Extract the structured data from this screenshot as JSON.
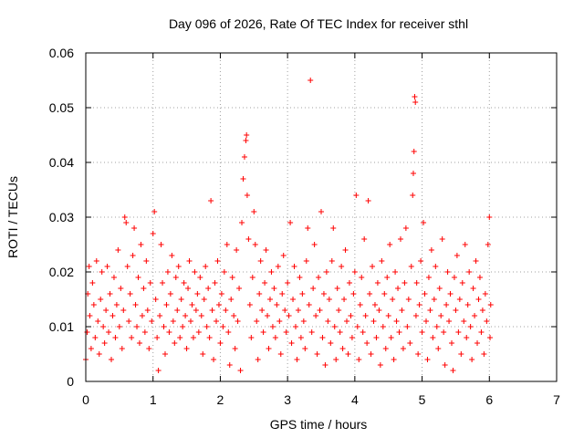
{
  "chart_data": {
    "type": "scatter",
    "title": "Day 096 of 2026, Rate Of TEC Index for receiver sthl",
    "xlabel": "GPS time / hours",
    "ylabel": "ROTI / TECUs",
    "xlim": [
      0,
      7
    ],
    "ylim": [
      0,
      0.06
    ],
    "grid": true,
    "marker": "+",
    "x_ticks": [
      0,
      1,
      2,
      3,
      4,
      5,
      6,
      7
    ],
    "x_tick_labels": [
      "0",
      "1",
      "2",
      "3",
      "4",
      "5",
      "6",
      "7"
    ],
    "y_ticks": [
      0,
      0.01,
      0.02,
      0.03,
      0.04,
      0.05,
      0.06
    ],
    "y_tick_labels": [
      "0",
      "0.01",
      "0.02",
      "0.03",
      "0.04",
      "0.05",
      "0.06"
    ],
    "series": [
      {
        "name": "ROTI",
        "color": "#ff0000",
        "points": [
          [
            0.0,
            0.004
          ],
          [
            0.02,
            0.009
          ],
          [
            0.03,
            0.016
          ],
          [
            0.05,
            0.021
          ],
          [
            0.06,
            0.012
          ],
          [
            0.08,
            0.006
          ],
          [
            0.1,
            0.018
          ],
          [
            0.12,
            0.014
          ],
          [
            0.14,
            0.008
          ],
          [
            0.16,
            0.022
          ],
          [
            0.18,
            0.011
          ],
          [
            0.2,
            0.005
          ],
          [
            0.22,
            0.015
          ],
          [
            0.24,
            0.02
          ],
          [
            0.26,
            0.01
          ],
          [
            0.28,
            0.007
          ],
          [
            0.3,
            0.013
          ],
          [
            0.32,
            0.021
          ],
          [
            0.34,
            0.009
          ],
          [
            0.36,
            0.016
          ],
          [
            0.38,
            0.004
          ],
          [
            0.4,
            0.012
          ],
          [
            0.42,
            0.019
          ],
          [
            0.44,
            0.008
          ],
          [
            0.46,
            0.014
          ],
          [
            0.48,
            0.024
          ],
          [
            0.5,
            0.01
          ],
          [
            0.52,
            0.017
          ],
          [
            0.54,
            0.006
          ],
          [
            0.56,
            0.013
          ],
          [
            0.58,
            0.03
          ],
          [
            0.6,
            0.029
          ],
          [
            0.62,
            0.021
          ],
          [
            0.64,
            0.011
          ],
          [
            0.66,
            0.016
          ],
          [
            0.68,
            0.008
          ],
          [
            0.7,
            0.023
          ],
          [
            0.72,
            0.028
          ],
          [
            0.74,
            0.014
          ],
          [
            0.76,
            0.01
          ],
          [
            0.78,
            0.019
          ],
          [
            0.8,
            0.007
          ],
          [
            0.82,
            0.025
          ],
          [
            0.84,
            0.012
          ],
          [
            0.86,
            0.017
          ],
          [
            0.88,
            0.009
          ],
          [
            0.9,
            0.022
          ],
          [
            0.92,
            0.013
          ],
          [
            0.94,
            0.006
          ],
          [
            0.96,
            0.018
          ],
          [
            0.98,
            0.011
          ],
          [
            1.0,
            0.027
          ],
          [
            1.02,
            0.031
          ],
          [
            1.04,
            0.015
          ],
          [
            1.06,
            0.008
          ],
          [
            1.08,
            0.002
          ],
          [
            1.1,
            0.012
          ],
          [
            1.12,
            0.025
          ],
          [
            1.14,
            0.018
          ],
          [
            1.16,
            0.01
          ],
          [
            1.18,
            0.005
          ],
          [
            1.2,
            0.014
          ],
          [
            1.22,
            0.02
          ],
          [
            1.24,
            0.009
          ],
          [
            1.26,
            0.016
          ],
          [
            1.28,
            0.023
          ],
          [
            1.3,
            0.011
          ],
          [
            1.32,
            0.007
          ],
          [
            1.34,
            0.019
          ],
          [
            1.36,
            0.013
          ],
          [
            1.38,
            0.021
          ],
          [
            1.4,
            0.008
          ],
          [
            1.42,
            0.015
          ],
          [
            1.44,
            0.01
          ],
          [
            1.46,
            0.018
          ],
          [
            1.48,
            0.012
          ],
          [
            1.5,
            0.006
          ],
          [
            1.52,
            0.017
          ],
          [
            1.54,
            0.022
          ],
          [
            1.56,
            0.011
          ],
          [
            1.58,
            0.014
          ],
          [
            1.6,
            0.008
          ],
          [
            1.62,
            0.02
          ],
          [
            1.64,
            0.013
          ],
          [
            1.66,
            0.016
          ],
          [
            1.68,
            0.009
          ],
          [
            1.7,
            0.019
          ],
          [
            1.72,
            0.012
          ],
          [
            1.74,
            0.005
          ],
          [
            1.76,
            0.015
          ],
          [
            1.78,
            0.021
          ],
          [
            1.8,
            0.01
          ],
          [
            1.82,
            0.017
          ],
          [
            1.84,
            0.008
          ],
          [
            1.86,
            0.033
          ],
          [
            1.88,
            0.013
          ],
          [
            1.9,
            0.004
          ],
          [
            1.92,
            0.018
          ],
          [
            1.94,
            0.011
          ],
          [
            1.96,
            0.022
          ],
          [
            1.98,
            0.014
          ],
          [
            2.0,
            0.007
          ],
          [
            2.02,
            0.016
          ],
          [
            2.04,
            0.01
          ],
          [
            2.06,
            0.02
          ],
          [
            2.08,
            0.013
          ],
          [
            2.1,
            0.025
          ],
          [
            2.12,
            0.009
          ],
          [
            2.14,
            0.003
          ],
          [
            2.16,
            0.015
          ],
          [
            2.18,
            0.019
          ],
          [
            2.2,
            0.012
          ],
          [
            2.22,
            0.006
          ],
          [
            2.24,
            0.024
          ],
          [
            2.26,
            0.011
          ],
          [
            2.28,
            0.017
          ],
          [
            2.3,
            0.002
          ],
          [
            2.32,
            0.029
          ],
          [
            2.34,
            0.037
          ],
          [
            2.36,
            0.041
          ],
          [
            2.38,
            0.044
          ],
          [
            2.39,
            0.045
          ],
          [
            2.4,
            0.034
          ],
          [
            2.42,
            0.026
          ],
          [
            2.44,
            0.014
          ],
          [
            2.46,
            0.008
          ],
          [
            2.48,
            0.019
          ],
          [
            2.5,
            0.031
          ],
          [
            2.52,
            0.025
          ],
          [
            2.54,
            0.011
          ],
          [
            2.56,
            0.004
          ],
          [
            2.58,
            0.016
          ],
          [
            2.6,
            0.022
          ],
          [
            2.62,
            0.013
          ],
          [
            2.64,
            0.009
          ],
          [
            2.66,
            0.018
          ],
          [
            2.68,
            0.024
          ],
          [
            2.7,
            0.012
          ],
          [
            2.72,
            0.006
          ],
          [
            2.74,
            0.015
          ],
          [
            2.76,
            0.02
          ],
          [
            2.78,
            0.01
          ],
          [
            2.8,
            0.017
          ],
          [
            2.82,
            0.008
          ],
          [
            2.84,
            0.014
          ],
          [
            2.86,
            0.021
          ],
          [
            2.88,
            0.011
          ],
          [
            2.9,
            0.005
          ],
          [
            2.92,
            0.016
          ],
          [
            2.94,
            0.023
          ],
          [
            2.96,
            0.013
          ],
          [
            2.98,
            0.009
          ],
          [
            3.0,
            0.018
          ],
          [
            3.02,
            0.012
          ],
          [
            3.04,
            0.029
          ],
          [
            3.06,
            0.007
          ],
          [
            3.08,
            0.015
          ],
          [
            3.1,
            0.021
          ],
          [
            3.12,
            0.01
          ],
          [
            3.14,
            0.004
          ],
          [
            3.16,
            0.013
          ],
          [
            3.18,
            0.019
          ],
          [
            3.2,
            0.008
          ],
          [
            3.22,
            0.016
          ],
          [
            3.24,
            0.011
          ],
          [
            3.26,
            0.006
          ],
          [
            3.28,
            0.022
          ],
          [
            3.3,
            0.028
          ],
          [
            3.32,
            0.014
          ],
          [
            3.34,
            0.055
          ],
          [
            3.36,
            0.009
          ],
          [
            3.38,
            0.017
          ],
          [
            3.4,
            0.025
          ],
          [
            3.42,
            0.012
          ],
          [
            3.44,
            0.005
          ],
          [
            3.46,
            0.019
          ],
          [
            3.48,
            0.013
          ],
          [
            3.5,
            0.031
          ],
          [
            3.52,
            0.008
          ],
          [
            3.54,
            0.016
          ],
          [
            3.56,
            0.003
          ],
          [
            3.58,
            0.02
          ],
          [
            3.6,
            0.011
          ],
          [
            3.62,
            0.015
          ],
          [
            3.64,
            0.007
          ],
          [
            3.66,
            0.022
          ],
          [
            3.68,
            0.028
          ],
          [
            3.7,
            0.01
          ],
          [
            3.72,
            0.004
          ],
          [
            3.74,
            0.017
          ],
          [
            3.76,
            0.013
          ],
          [
            3.78,
            0.009
          ],
          [
            3.8,
            0.021
          ],
          [
            3.82,
            0.006
          ],
          [
            3.84,
            0.015
          ],
          [
            3.86,
            0.024
          ],
          [
            3.88,
            0.011
          ],
          [
            3.9,
            0.005
          ],
          [
            3.92,
            0.018
          ],
          [
            3.94,
            0.012
          ],
          [
            3.96,
            0.008
          ],
          [
            3.98,
            0.016
          ],
          [
            4.0,
            0.02
          ],
          [
            4.02,
            0.034
          ],
          [
            4.04,
            0.01
          ],
          [
            4.06,
            0.004
          ],
          [
            4.08,
            0.014
          ],
          [
            4.1,
            0.019
          ],
          [
            4.12,
            0.009
          ],
          [
            4.14,
            0.026
          ],
          [
            4.16,
            0.012
          ],
          [
            4.18,
            0.007
          ],
          [
            4.2,
            0.033
          ],
          [
            4.22,
            0.016
          ],
          [
            4.24,
            0.005
          ],
          [
            4.26,
            0.021
          ],
          [
            4.28,
            0.011
          ],
          [
            4.3,
            0.014
          ],
          [
            4.32,
            0.008
          ],
          [
            4.34,
            0.018
          ],
          [
            4.36,
            0.013
          ],
          [
            4.38,
            0.003
          ],
          [
            4.4,
            0.022
          ],
          [
            4.42,
            0.01
          ],
          [
            4.44,
            0.016
          ],
          [
            4.46,
            0.006
          ],
          [
            4.48,
            0.019
          ],
          [
            4.5,
            0.012
          ],
          [
            4.52,
            0.025
          ],
          [
            4.54,
            0.008
          ],
          [
            4.56,
            0.015
          ],
          [
            4.58,
            0.004
          ],
          [
            4.6,
            0.02
          ],
          [
            4.62,
            0.011
          ],
          [
            4.64,
            0.017
          ],
          [
            4.66,
            0.009
          ],
          [
            4.68,
            0.026
          ],
          [
            4.7,
            0.013
          ],
          [
            4.72,
            0.006
          ],
          [
            4.74,
            0.018
          ],
          [
            4.76,
            0.028
          ],
          [
            4.78,
            0.01
          ],
          [
            4.8,
            0.015
          ],
          [
            4.82,
            0.007
          ],
          [
            4.84,
            0.021
          ],
          [
            4.86,
            0.034
          ],
          [
            4.87,
            0.038
          ],
          [
            4.88,
            0.042
          ],
          [
            4.89,
            0.052
          ],
          [
            4.9,
            0.051
          ],
          [
            4.91,
            0.012
          ],
          [
            4.92,
            0.018
          ],
          [
            4.94,
            0.005
          ],
          [
            4.96,
            0.014
          ],
          [
            4.98,
            0.022
          ],
          [
            5.0,
            0.009
          ],
          [
            5.02,
            0.029
          ],
          [
            5.04,
            0.016
          ],
          [
            5.06,
            0.011
          ],
          [
            5.08,
            0.004
          ],
          [
            5.1,
            0.019
          ],
          [
            5.12,
            0.013
          ],
          [
            5.14,
            0.024
          ],
          [
            5.16,
            0.008
          ],
          [
            5.18,
            0.015
          ],
          [
            5.2,
            0.021
          ],
          [
            5.22,
            0.01
          ],
          [
            5.24,
            0.006
          ],
          [
            5.26,
            0.017
          ],
          [
            5.28,
            0.012
          ],
          [
            5.3,
            0.026
          ],
          [
            5.32,
            0.009
          ],
          [
            5.34,
            0.003
          ],
          [
            5.36,
            0.014
          ],
          [
            5.38,
            0.02
          ],
          [
            5.4,
            0.011
          ],
          [
            5.42,
            0.016
          ],
          [
            5.44,
            0.007
          ],
          [
            5.46,
            0.002
          ],
          [
            5.48,
            0.019
          ],
          [
            5.5,
            0.013
          ],
          [
            5.52,
            0.023
          ],
          [
            5.54,
            0.009
          ],
          [
            5.56,
            0.015
          ],
          [
            5.58,
            0.005
          ],
          [
            5.6,
            0.018
          ],
          [
            5.62,
            0.011
          ],
          [
            5.64,
            0.025
          ],
          [
            5.66,
            0.008
          ],
          [
            5.68,
            0.014
          ],
          [
            5.7,
            0.02
          ],
          [
            5.72,
            0.01
          ],
          [
            5.74,
            0.004
          ],
          [
            5.76,
            0.017
          ],
          [
            5.78,
            0.012
          ],
          [
            5.8,
            0.022
          ],
          [
            5.82,
            0.007
          ],
          [
            5.84,
            0.015
          ],
          [
            5.86,
            0.019
          ],
          [
            5.88,
            0.009
          ],
          [
            5.9,
            0.013
          ],
          [
            5.92,
            0.005
          ],
          [
            5.94,
            0.016
          ],
          [
            5.96,
            0.011
          ],
          [
            5.98,
            0.025
          ],
          [
            6.0,
            0.03
          ],
          [
            6.01,
            0.008
          ],
          [
            6.02,
            0.014
          ]
        ]
      }
    ]
  }
}
